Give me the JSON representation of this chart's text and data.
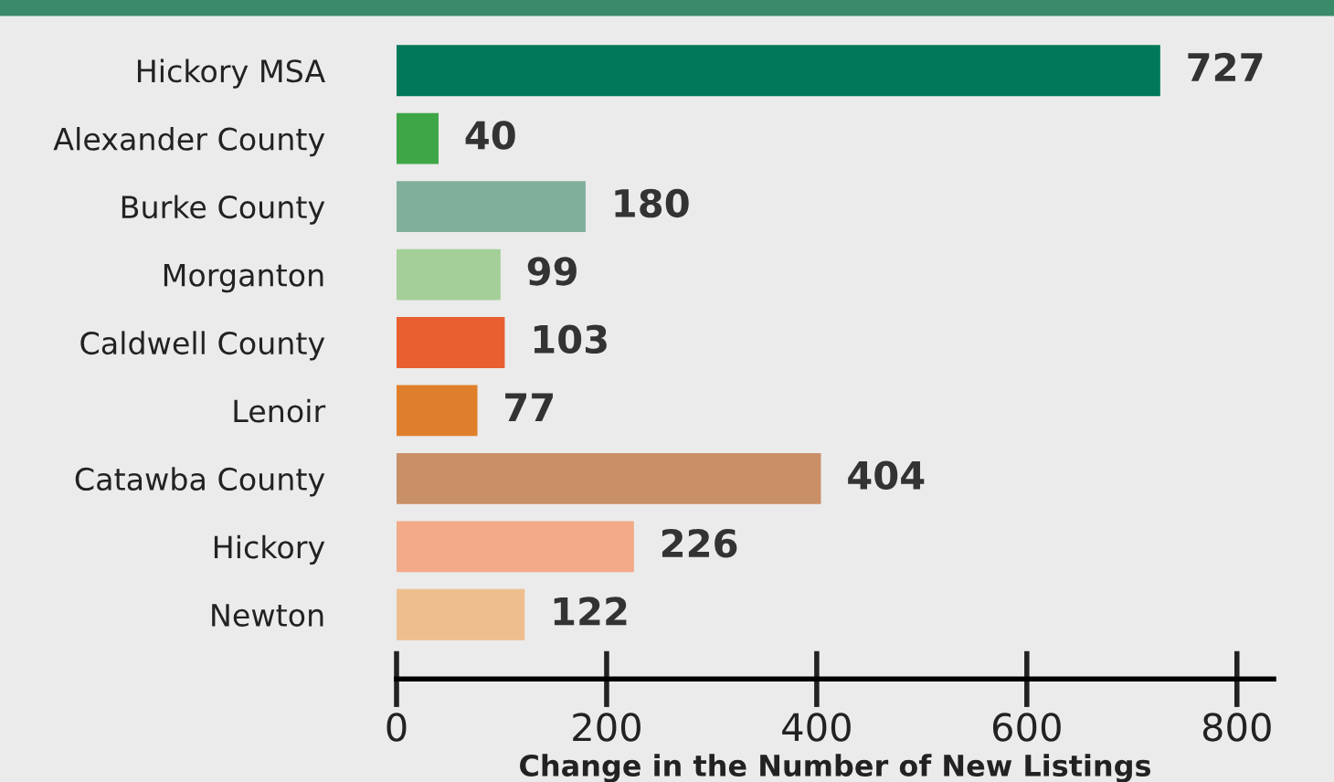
{
  "chart_data": {
    "type": "bar",
    "orientation": "horizontal",
    "xlabel": "Change in the Number of New Listings",
    "categories": [
      "Hickory MSA",
      "Alexander County",
      "Burke County",
      "Morganton",
      "Caldwell County",
      "Lenoir",
      "Catawba County",
      "Hickory",
      "Newton"
    ],
    "values": [
      727,
      40,
      180,
      99,
      103,
      77,
      404,
      226,
      122
    ],
    "colors": [
      "#00785a",
      "#3fa648",
      "#80b09c",
      "#a5cf98",
      "#e85f30",
      "#e07f2b",
      "#c98f67",
      "#f2aa88",
      "#eebf8e"
    ],
    "xlim": [
      0,
      835
    ],
    "xticks": [
      0,
      200,
      400,
      600,
      800
    ],
    "data_labels": true,
    "grid": false,
    "legend": false
  }
}
